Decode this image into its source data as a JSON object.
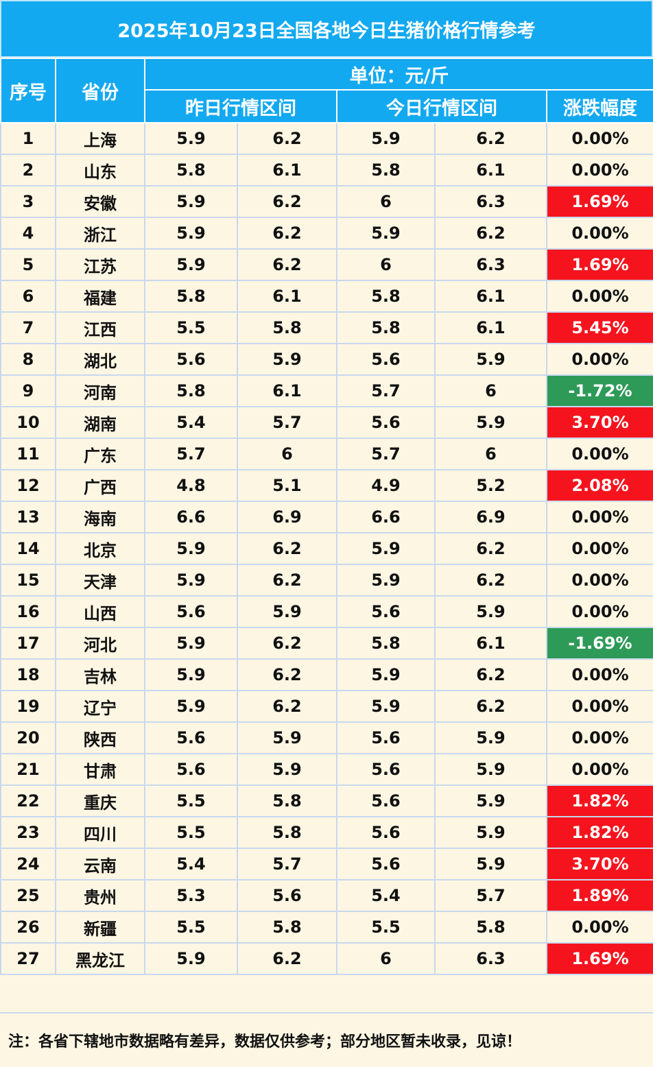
{
  "title": "2025年10月23日全国各地今日生猪价格行情参考",
  "headers": {
    "index": "序号",
    "province": "省份",
    "unit": "单位：元/斤",
    "yesterday_range": "昨日行情区间",
    "today_range": "今日行情区间",
    "change": "涨跌幅度"
  },
  "colors": {
    "header_blue": "#13a9f0",
    "rise_red": "#f5141e",
    "fall_green": "#2e9a57",
    "body_bg": "#fdf6e3"
  },
  "rows": [
    {
      "no": "1",
      "province": "上海",
      "y_low": "5.9",
      "y_high": "6.2",
      "t_low": "5.9",
      "t_high": "6.2",
      "change": "0.00%",
      "trend": "flat"
    },
    {
      "no": "2",
      "province": "山东",
      "y_low": "5.8",
      "y_high": "6.1",
      "t_low": "5.8",
      "t_high": "6.1",
      "change": "0.00%",
      "trend": "flat"
    },
    {
      "no": "3",
      "province": "安徽",
      "y_low": "5.9",
      "y_high": "6.2",
      "t_low": "6",
      "t_high": "6.3",
      "change": "1.69%",
      "trend": "up"
    },
    {
      "no": "4",
      "province": "浙江",
      "y_low": "5.9",
      "y_high": "6.2",
      "t_low": "5.9",
      "t_high": "6.2",
      "change": "0.00%",
      "trend": "flat"
    },
    {
      "no": "5",
      "province": "江苏",
      "y_low": "5.9",
      "y_high": "6.2",
      "t_low": "6",
      "t_high": "6.3",
      "change": "1.69%",
      "trend": "up"
    },
    {
      "no": "6",
      "province": "福建",
      "y_low": "5.8",
      "y_high": "6.1",
      "t_low": "5.8",
      "t_high": "6.1",
      "change": "0.00%",
      "trend": "flat"
    },
    {
      "no": "7",
      "province": "江西",
      "y_low": "5.5",
      "y_high": "5.8",
      "t_low": "5.8",
      "t_high": "6.1",
      "change": "5.45%",
      "trend": "up"
    },
    {
      "no": "8",
      "province": "湖北",
      "y_low": "5.6",
      "y_high": "5.9",
      "t_low": "5.6",
      "t_high": "5.9",
      "change": "0.00%",
      "trend": "flat"
    },
    {
      "no": "9",
      "province": "河南",
      "y_low": "5.8",
      "y_high": "6.1",
      "t_low": "5.7",
      "t_high": "6",
      "change": "-1.72%",
      "trend": "down"
    },
    {
      "no": "10",
      "province": "湖南",
      "y_low": "5.4",
      "y_high": "5.7",
      "t_low": "5.6",
      "t_high": "5.9",
      "change": "3.70%",
      "trend": "up"
    },
    {
      "no": "11",
      "province": "广东",
      "y_low": "5.7",
      "y_high": "6",
      "t_low": "5.7",
      "t_high": "6",
      "change": "0.00%",
      "trend": "flat"
    },
    {
      "no": "12",
      "province": "广西",
      "y_low": "4.8",
      "y_high": "5.1",
      "t_low": "4.9",
      "t_high": "5.2",
      "change": "2.08%",
      "trend": "up"
    },
    {
      "no": "13",
      "province": "海南",
      "y_low": "6.6",
      "y_high": "6.9",
      "t_low": "6.6",
      "t_high": "6.9",
      "change": "0.00%",
      "trend": "flat"
    },
    {
      "no": "14",
      "province": "北京",
      "y_low": "5.9",
      "y_high": "6.2",
      "t_low": "5.9",
      "t_high": "6.2",
      "change": "0.00%",
      "trend": "flat"
    },
    {
      "no": "15",
      "province": "天津",
      "y_low": "5.9",
      "y_high": "6.2",
      "t_low": "5.9",
      "t_high": "6.2",
      "change": "0.00%",
      "trend": "flat"
    },
    {
      "no": "16",
      "province": "山西",
      "y_low": "5.6",
      "y_high": "5.9",
      "t_low": "5.6",
      "t_high": "5.9",
      "change": "0.00%",
      "trend": "flat"
    },
    {
      "no": "17",
      "province": "河北",
      "y_low": "5.9",
      "y_high": "6.2",
      "t_low": "5.8",
      "t_high": "6.1",
      "change": "-1.69%",
      "trend": "down"
    },
    {
      "no": "18",
      "province": "吉林",
      "y_low": "5.9",
      "y_high": "6.2",
      "t_low": "5.9",
      "t_high": "6.2",
      "change": "0.00%",
      "trend": "flat"
    },
    {
      "no": "19",
      "province": "辽宁",
      "y_low": "5.9",
      "y_high": "6.2",
      "t_low": "5.9",
      "t_high": "6.2",
      "change": "0.00%",
      "trend": "flat"
    },
    {
      "no": "20",
      "province": "陕西",
      "y_low": "5.6",
      "y_high": "5.9",
      "t_low": "5.6",
      "t_high": "5.9",
      "change": "0.00%",
      "trend": "flat"
    },
    {
      "no": "21",
      "province": "甘肃",
      "y_low": "5.6",
      "y_high": "5.9",
      "t_low": "5.6",
      "t_high": "5.9",
      "change": "0.00%",
      "trend": "flat"
    },
    {
      "no": "22",
      "province": "重庆",
      "y_low": "5.5",
      "y_high": "5.8",
      "t_low": "5.6",
      "t_high": "5.9",
      "change": "1.82%",
      "trend": "up"
    },
    {
      "no": "23",
      "province": "四川",
      "y_low": "5.5",
      "y_high": "5.8",
      "t_low": "5.6",
      "t_high": "5.9",
      "change": "1.82%",
      "trend": "up"
    },
    {
      "no": "24",
      "province": "云南",
      "y_low": "5.4",
      "y_high": "5.7",
      "t_low": "5.6",
      "t_high": "5.9",
      "change": "3.70%",
      "trend": "up"
    },
    {
      "no": "25",
      "province": "贵州",
      "y_low": "5.3",
      "y_high": "5.6",
      "t_low": "5.4",
      "t_high": "5.7",
      "change": "1.89%",
      "trend": "up"
    },
    {
      "no": "26",
      "province": "新疆",
      "y_low": "5.5",
      "y_high": "5.8",
      "t_low": "5.5",
      "t_high": "5.8",
      "change": "0.00%",
      "trend": "flat"
    },
    {
      "no": "27",
      "province": "黑龙江",
      "y_low": "5.9",
      "y_high": "6.2",
      "t_low": "6",
      "t_high": "6.3",
      "change": "1.69%",
      "trend": "up"
    }
  ],
  "note": "注：各省下辖地市数据略有差异，数据仅供参考；部分地区暂未收录，见谅！"
}
